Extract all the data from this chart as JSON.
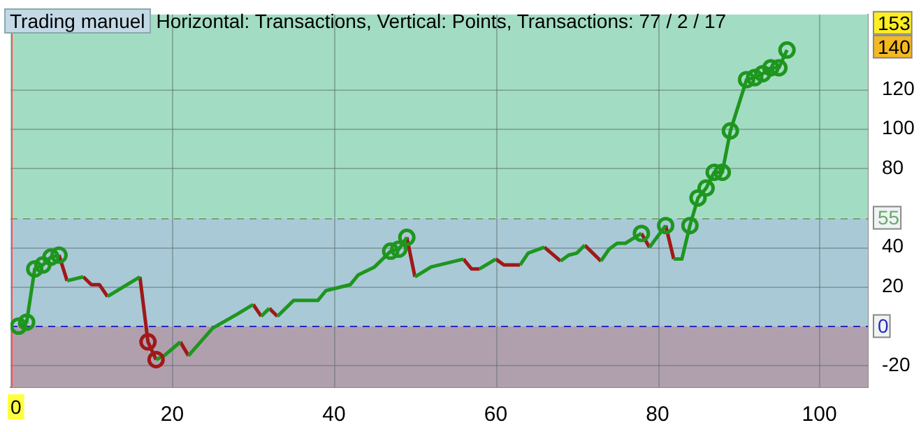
{
  "chart_data": {
    "type": "line",
    "title": "Trading manuel",
    "subtitle": "Horizontal: Transactions, Vertical: Points, Transactions: 77 / 2 / 17",
    "xlim": [
      0,
      106
    ],
    "xticks": [
      20,
      40,
      60,
      80,
      100
    ],
    "ylim": [
      -31,
      158
    ],
    "yticks": [
      -20,
      20,
      40,
      80,
      100,
      120
    ],
    "grid": true,
    "legend": false,
    "series": [
      {
        "marker": "none",
        "color": "#1e961e",
        "x": [
          1,
          2,
          3,
          4,
          5,
          6,
          6.5,
          7,
          9,
          10.5,
          12,
          14,
          16,
          16.5,
          18,
          19,
          21,
          21.5,
          22,
          25,
          28,
          30,
          30.5,
          31,
          32,
          32.5,
          33,
          35,
          38,
          39,
          42,
          43,
          45,
          47,
          48,
          49,
          49.5,
          50,
          52,
          56,
          56.5,
          58,
          60,
          62,
          63,
          64,
          66,
          67,
          68,
          69,
          70,
          71,
          72,
          73,
          74,
          75,
          76,
          78,
          78.5,
          79,
          81,
          81.5,
          82,
          83,
          84,
          85,
          86,
          87,
          88,
          89,
          91,
          92,
          93,
          94,
          95,
          96
        ],
        "values": [
          0,
          2,
          29,
          31,
          35,
          36,
          null,
          23,
          25,
          null,
          15,
          20,
          25,
          null,
          -17,
          -15,
          -8,
          null,
          -15,
          -1,
          6,
          11,
          null,
          5,
          9,
          null,
          5,
          13,
          13,
          18,
          21,
          26,
          30,
          38,
          39,
          45,
          null,
          25,
          30,
          34,
          null,
          29,
          34,
          null,
          31,
          37,
          40,
          null,
          33,
          36,
          37,
          41,
          null,
          33,
          39,
          42,
          42,
          47,
          null,
          40,
          51,
          null,
          34,
          34,
          51,
          65,
          70,
          78,
          78,
          99,
          125,
          126,
          128,
          131,
          131,
          140
        ]
      },
      {
        "marker": "none",
        "color": "#a01818",
        "x": [
          6,
          7,
          8,
          9,
          10,
          11,
          12,
          14,
          16,
          17,
          18,
          19.5,
          21,
          22,
          26,
          30,
          31,
          31.5,
          32,
          33,
          40,
          49,
          50,
          53,
          56,
          57,
          58,
          59,
          60,
          61,
          63,
          64.5,
          66,
          68,
          69.5,
          71,
          73,
          75.5,
          78,
          79,
          80,
          81,
          82
        ],
        "values": [
          36,
          23,
          null,
          25,
          21,
          21,
          15,
          null,
          25,
          -8,
          -17,
          null,
          -8,
          -15,
          null,
          11,
          5,
          null,
          9,
          5,
          null,
          45,
          25,
          null,
          34,
          29,
          29,
          null,
          34,
          31,
          31,
          null,
          40,
          33,
          null,
          41,
          33,
          null,
          47,
          40,
          null,
          51,
          34
        ]
      },
      {
        "type": "scatter",
        "marker": "circle",
        "color": "#1e961e",
        "x": [
          1,
          2,
          3,
          4,
          5,
          6,
          47,
          48,
          49,
          78,
          81,
          84,
          85,
          86,
          87,
          88,
          89,
          91,
          92,
          93,
          94,
          95,
          96
        ],
        "values": [
          0,
          2,
          29,
          31,
          35,
          36,
          38,
          39,
          45,
          47,
          51,
          51,
          65,
          70,
          78,
          78,
          99,
          125,
          126,
          128,
          131,
          131,
          140
        ]
      },
      {
        "type": "scatter",
        "marker": "circle",
        "color": "#a01818",
        "x": [
          17,
          18
        ],
        "values": [
          -8,
          -17
        ]
      }
    ],
    "bands": [
      {
        "axis": "y",
        "from": 55,
        "to": 158,
        "color": "#a2dcc2"
      },
      {
        "axis": "y",
        "from": 0,
        "to": 55,
        "color": "#a9c9d6"
      },
      {
        "axis": "y",
        "from": -31,
        "to": 0,
        "color": "#b0a0ae"
      }
    ],
    "ref_lines": [
      {
        "axis": "y",
        "value": 55,
        "label": "55",
        "color": "#6aa86a",
        "line_style": "dashed"
      },
      {
        "axis": "y",
        "value": 0,
        "label": "0",
        "color": "#2828c0",
        "line_style": "dashed"
      },
      {
        "axis": "x",
        "value": 0,
        "label": "0",
        "color": "#ff5050",
        "line_style": "solid"
      }
    ],
    "annotations": [
      "153",
      "140"
    ]
  }
}
